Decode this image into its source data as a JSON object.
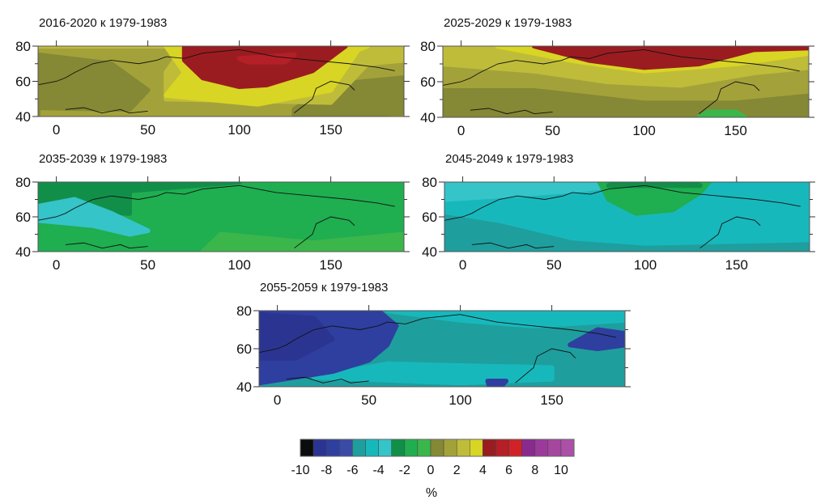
{
  "chart_data": {
    "type": "heatmap",
    "title": "",
    "panels": [
      {
        "title": "2016-2020 к 1979-1983",
        "dominant_range": [
          0,
          4
        ],
        "feature": "positive anomaly 4..6 over Siberia 70-155E north of 57N"
      },
      {
        "title": "2025-2029 к 1979-1983",
        "dominant_range": [
          0,
          4
        ],
        "feature": "band 4..6 along northern edge 60-80N"
      },
      {
        "title": "2035-2039 к 1979-1983",
        "dominant_range": [
          -3,
          0
        ],
        "feature": "-4..-3 over Scandinavia"
      },
      {
        "title": "2045-2049 к 1979-1983",
        "dominant_range": [
          -6,
          -3
        ],
        "feature": "-3..-2 island near 75-135E, 60-80N"
      },
      {
        "title": "2055-2059 к 1979-1983",
        "dominant_range": [
          -6,
          -3
        ],
        "feature": "-9..-6 over Europe west of 60E"
      }
    ],
    "xticks": [
      "0",
      "50",
      "100",
      "150"
    ],
    "yticks": [
      "40",
      "60",
      "80"
    ],
    "xlim": [
      -10,
      190
    ],
    "ylim": [
      40,
      80
    ],
    "colorbar": {
      "label": "%",
      "ticks": [
        "-10",
        "-8",
        "-6",
        "-4",
        "-2",
        "0",
        "2",
        "4",
        "6",
        "8",
        "10"
      ],
      "colors": [
        "#0b0d0d",
        "#2b3591",
        "#2e3f9f",
        "#3a4ba6",
        "#1f9e9e",
        "#17b8bc",
        "#35c4c8",
        "#118f48",
        "#1fae50",
        "#3bb64b",
        "#858834",
        "#a3a23a",
        "#bfbc3a",
        "#d8d524",
        "#9a1c20",
        "#b51f27",
        "#d02327",
        "#892a8e",
        "#9b3a9a",
        "#a6469f",
        "#ac50a7"
      ]
    }
  }
}
